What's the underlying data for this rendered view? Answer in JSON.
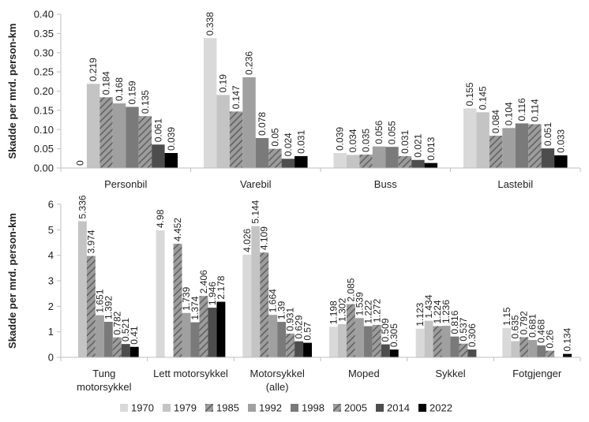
{
  "years": [
    "1970",
    "1979",
    "1985",
    "1992",
    "1998",
    "2005",
    "2014",
    "2022"
  ],
  "legend_colors": [
    "#d9d9d9",
    "#c4c4c4",
    "#b0b0b0",
    "#a0a0a0",
    "#7a7a7a",
    "#7a7a7a",
    "#4d4d4d",
    "#000000"
  ],
  "legend_hatched": [
    false,
    false,
    true,
    false,
    false,
    true,
    false,
    false
  ],
  "chart_data": [
    {
      "type": "bar",
      "title": "",
      "ylabel": "Skadde per mrd. person-km",
      "ylim": [
        0,
        0.4
      ],
      "yticks": [
        "0.00",
        "0.05",
        "0.10",
        "0.15",
        "0.20",
        "0.25",
        "0.30",
        "0.35",
        "0.40"
      ],
      "categories": [
        "Personbil",
        "Varebil",
        "Buss",
        "Lastebil"
      ],
      "series": [
        {
          "name": "1970",
          "values": [
            0,
            0.338,
            0.039,
            0.155
          ],
          "labels": [
            "0",
            "0.338",
            "0.039",
            "0.155"
          ]
        },
        {
          "name": "1979",
          "values": [
            0.219,
            0.19,
            0.034,
            0.145
          ],
          "labels": [
            "0.219",
            "0.19",
            "0.034",
            "0.145"
          ]
        },
        {
          "name": "1985",
          "values": [
            0.184,
            0.147,
            0.035,
            0.084
          ],
          "labels": [
            "0.184",
            "0.147",
            "0.035",
            "0.084"
          ]
        },
        {
          "name": "1992",
          "values": [
            0.168,
            0.236,
            0.056,
            0.104
          ],
          "labels": [
            "0.168",
            "0.236",
            "0.056",
            "0.104"
          ]
        },
        {
          "name": "1998",
          "values": [
            0.159,
            0.078,
            0.055,
            0.116
          ],
          "labels": [
            "0.159",
            "0.078",
            "0.055",
            "0.116"
          ]
        },
        {
          "name": "2005",
          "values": [
            0.135,
            0.05,
            0.031,
            0.114
          ],
          "labels": [
            "0.135",
            "0.05",
            "0.031",
            "0.114"
          ]
        },
        {
          "name": "2014",
          "values": [
            0.061,
            0.024,
            0.021,
            0.051
          ],
          "labels": [
            "0.061",
            "0.024",
            "0.021",
            "0.051"
          ]
        },
        {
          "name": "2022",
          "values": [
            0.039,
            0.031,
            0.013,
            0.033
          ],
          "labels": [
            "0.039",
            "0.031",
            "0.013",
            "0.033"
          ]
        }
      ]
    },
    {
      "type": "bar",
      "title": "",
      "ylabel": "Skadde per mrd. person-km",
      "ylim": [
        0,
        6
      ],
      "yticks": [
        "0",
        "1",
        "2",
        "3",
        "4",
        "5",
        "6"
      ],
      "categories": [
        [
          "Tung",
          "motorsykkel"
        ],
        [
          "Lett motorsykkel"
        ],
        [
          "Motorsykkel",
          "(alle)"
        ],
        [
          "Moped"
        ],
        [
          "Sykkel"
        ],
        [
          "Fotgjenger"
        ]
      ],
      "series": [
        {
          "name": "1970",
          "values": [
            null,
            4.98,
            4.026,
            1.198,
            1.123,
            1.15
          ],
          "labels": [
            "",
            "4.98",
            "4.026",
            "1.198",
            "1.123",
            "1.15"
          ]
        },
        {
          "name": "1979",
          "values": [
            5.336,
            null,
            5.144,
            1.302,
            1.434,
            0.635
          ],
          "labels": [
            "5.336",
            "",
            "5.144",
            "1.302",
            "1.434",
            "0.635"
          ]
        },
        {
          "name": "1985",
          "values": [
            3.974,
            4.452,
            4.109,
            2.085,
            1.224,
            0.792
          ],
          "labels": [
            "3.974",
            "4.452",
            "4.109",
            "2.085",
            "1.224",
            "0.792"
          ]
        },
        {
          "name": "1992",
          "values": [
            1.651,
            1.739,
            1.664,
            1.539,
            1.236,
            0.681
          ],
          "labels": [
            "1.651",
            "1.739",
            "1.664",
            "1.539",
            "1.236",
            "0.681"
          ]
        },
        {
          "name": "1998",
          "values": [
            1.392,
            1.374,
            1.39,
            1.222,
            0.816,
            0.468
          ],
          "labels": [
            "1.392",
            "1.374",
            "1.39",
            "1.222",
            "0.816",
            "0.468"
          ]
        },
        {
          "name": "2005",
          "values": [
            0.782,
            2.406,
            0.931,
            1.272,
            0.537,
            0.26
          ],
          "labels": [
            "0.782",
            "2.406",
            "0.931",
            "1.272",
            "0.537",
            "0.26"
          ]
        },
        {
          "name": "2014",
          "values": [
            0.521,
            1.946,
            0.629,
            0.509,
            0.306,
            null
          ],
          "labels": [
            "0.521",
            "1.946",
            "0.629",
            "0.509",
            "0.306",
            ""
          ]
        },
        {
          "name": "2022",
          "values": [
            0.41,
            2.178,
            0.57,
            0.305,
            null,
            0.134
          ],
          "labels": [
            "0.41",
            "2.178",
            "0.57",
            "0.305",
            "",
            "0.134"
          ]
        }
      ]
    }
  ]
}
